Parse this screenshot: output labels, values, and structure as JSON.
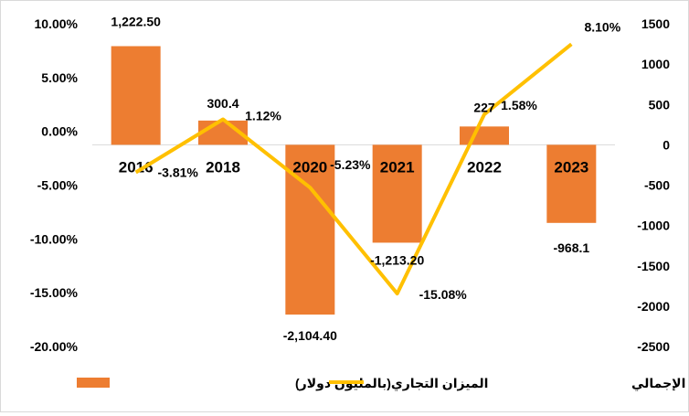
{
  "chart_data": {
    "type": "bar",
    "categories": [
      "2016",
      "2018",
      "2020",
      "2021",
      "2022",
      "2023"
    ],
    "series": [
      {
        "name": "الميزان التجاري(بالمليون دولار)",
        "type": "bar",
        "axis": "right",
        "values": [
          1222.5,
          300.4,
          -2104.4,
          -1213.2,
          227,
          -968.1
        ],
        "labels": [
          "1,222.50",
          "300.4",
          "-2,104.40",
          "-1,213.20",
          "227",
          "-968.1"
        ],
        "color": "#ED7D31"
      },
      {
        "name": "الميزان التجاري % من الناتج المحلي الإجمالي",
        "type": "line",
        "axis": "left",
        "values": [
          -3.81,
          1.12,
          -5.23,
          -15.08,
          1.58,
          8.1
        ],
        "labels": [
          "-3.81%",
          "1.12%",
          "-5.23%",
          "-15.08%",
          "1.58%",
          "8.10%"
        ],
        "color": "#FFC000"
      }
    ],
    "left_axis": {
      "ylim": [
        -20,
        10
      ],
      "ticks": [
        10,
        5,
        0,
        -5,
        -10,
        -15,
        -20
      ],
      "tick_labels": [
        "10.00%",
        "5.00%",
        "0.00%",
        "-5.00%",
        "-10.00%",
        "-15.00%",
        "-20.00%"
      ]
    },
    "right_axis": {
      "ylim": [
        -2500,
        1500
      ],
      "ticks": [
        1500,
        1000,
        500,
        0,
        -500,
        -1000,
        -1500,
        -2000,
        -2500
      ],
      "tick_labels": [
        "1500",
        "1000",
        "500",
        "0",
        "-500",
        "-1000",
        "-1500",
        "-2000",
        "-2500"
      ]
    },
    "grid": false,
    "legend_position": "bottom"
  }
}
